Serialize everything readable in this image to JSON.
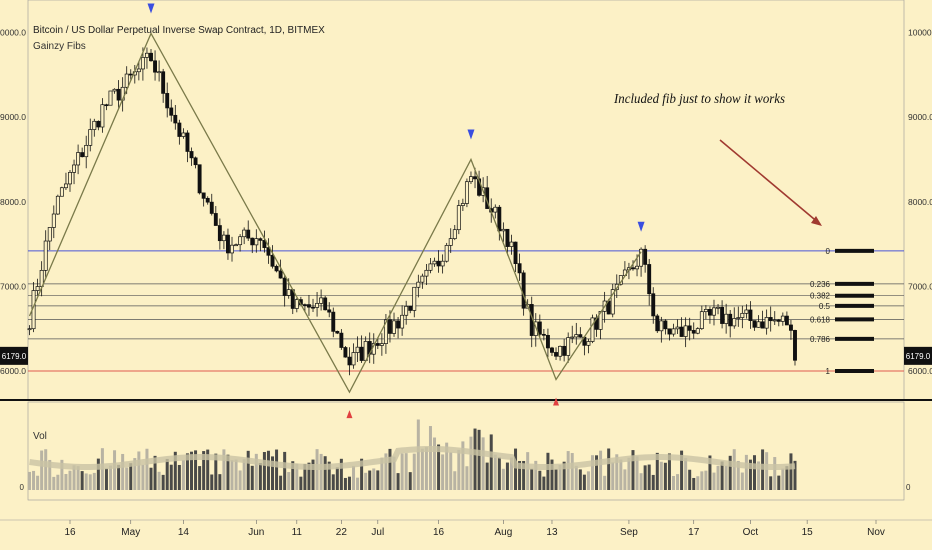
{
  "header": {
    "title": "Bitcoin / US Dollar Perpetual Inverse Swap Contract, 1D, BITMEX",
    "indicator": "Gainzy Fibs",
    "volume_label": "Vol"
  },
  "annotation": "Included fib just to show it works",
  "price_badge": "6179.0",
  "colors": {
    "background": "#fcf1c6",
    "fib_top": "#4a55d8",
    "fib_bottom": "#e05a50",
    "zigzag": "#7a7a4a",
    "arrow": "#a03a30",
    "marker_top": "#3a4ee0",
    "marker_bottom": "#e04040"
  },
  "chart_data": {
    "type": "candlestick",
    "title": "Bitcoin / US Dollar Perpetual Inverse Swap Contract, 1D, BITMEX",
    "x_ticks": [
      "16",
      "May",
      "14",
      "Jun",
      "11",
      "22",
      "Jul",
      "16",
      "Aug",
      "13",
      "Sep",
      "17",
      "Oct",
      "15",
      "Nov"
    ],
    "y_ticks": [
      "10000.0",
      "9000.0",
      "8000.0",
      "7000.0",
      "6000.0"
    ],
    "ylim": [
      5300,
      10350
    ],
    "current_price": 6179.0,
    "fib_levels": [
      {
        "label": "0",
        "price": 7420
      },
      {
        "label": "0.236",
        "price": 7030
      },
      {
        "label": "0.382",
        "price": 6890
      },
      {
        "label": "0.5",
        "price": 6770
      },
      {
        "label": "0.618",
        "price": 6610
      },
      {
        "label": "0.786",
        "price": 6380
      },
      {
        "label": "1",
        "price": 6000
      }
    ],
    "zigzag": [
      {
        "date": "2018-04-06",
        "price": 6650
      },
      {
        "date": "2018-05-06",
        "price": 9990
      },
      {
        "date": "2018-06-24",
        "price": 5750
      },
      {
        "date": "2018-07-24",
        "price": 8500
      },
      {
        "date": "2018-08-14",
        "price": 5900
      },
      {
        "date": "2018-09-04",
        "price": 7410
      }
    ],
    "swing_markers": [
      {
        "type": "high",
        "date": "2018-05-06"
      },
      {
        "type": "low",
        "date": "2018-06-24"
      },
      {
        "type": "high",
        "date": "2018-07-24"
      },
      {
        "type": "low",
        "date": "2018-08-14"
      },
      {
        "type": "high",
        "date": "2018-09-04"
      }
    ],
    "close_anchors": [
      {
        "date": "2018-04-06",
        "price": 6630
      },
      {
        "date": "2018-04-12",
        "price": 7900
      },
      {
        "date": "2018-04-24",
        "price": 9100
      },
      {
        "date": "2018-05-06",
        "price": 9700
      },
      {
        "date": "2018-05-14",
        "price": 8700
      },
      {
        "date": "2018-05-24",
        "price": 7500
      },
      {
        "date": "2018-06-02",
        "price": 7600
      },
      {
        "date": "2018-06-10",
        "price": 6750
      },
      {
        "date": "2018-06-18",
        "price": 6750
      },
      {
        "date": "2018-06-24",
        "price": 6100
      },
      {
        "date": "2018-07-06",
        "price": 6600
      },
      {
        "date": "2018-07-16",
        "price": 7300
      },
      {
        "date": "2018-07-24",
        "price": 8300
      },
      {
        "date": "2018-08-02",
        "price": 7600
      },
      {
        "date": "2018-08-08",
        "price": 6500
      },
      {
        "date": "2018-08-14",
        "price": 6250
      },
      {
        "date": "2018-08-22",
        "price": 6450
      },
      {
        "date": "2018-08-30",
        "price": 7000
      },
      {
        "date": "2018-09-04",
        "price": 7380
      },
      {
        "date": "2018-09-08",
        "price": 6500
      },
      {
        "date": "2018-09-14",
        "price": 6450
      },
      {
        "date": "2018-09-22",
        "price": 6650
      },
      {
        "date": "2018-10-01",
        "price": 6600
      },
      {
        "date": "2018-10-10",
        "price": 6580
      },
      {
        "date": "2018-10-12",
        "price": 6250
      }
    ]
  }
}
